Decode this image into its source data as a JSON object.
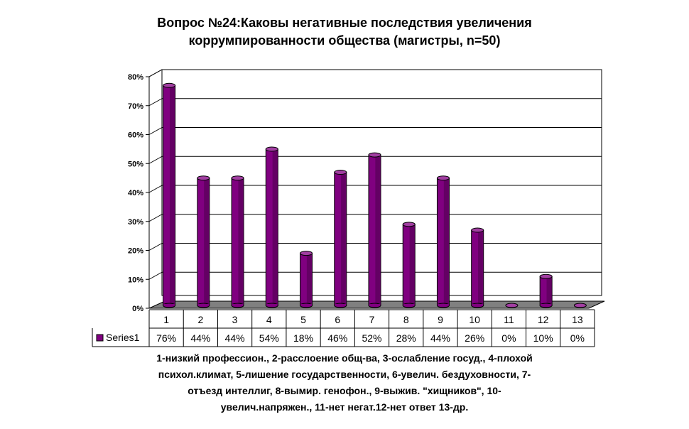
{
  "title_line1": "Вопрос №24:Каковы негативные последствия увеличения",
  "title_line2": "коррумпированности общества (магистры, n=50)",
  "caption_lines": [
    "1-низкий профессион., 2-расслоение общ-ва, 3-ослабление госуд., 4-плохой",
    "психол.климат, 5-лишение государственности, 6-увелич. бездуховности, 7-",
    "отъезд интеллиг, 8-вымир. генофон., 9-выжив. \"хищников\", 10-",
    "увелич.напряжен., 11-нет негат.12-нет ответ 13-др."
  ],
  "colors": {
    "bar_front": "#800080",
    "bar_top": "#a23ea2",
    "bar_side": "#4d004d",
    "floor": "#808080"
  },
  "chart_data": {
    "type": "bar",
    "categories": [
      "1",
      "2",
      "3",
      "4",
      "5",
      "6",
      "7",
      "8",
      "9",
      "10",
      "11",
      "12",
      "13"
    ],
    "series": [
      {
        "name": "Series1",
        "values": [
          76,
          44,
          44,
          54,
          18,
          46,
          52,
          28,
          44,
          26,
          0,
          10,
          0
        ],
        "labels": [
          "76%",
          "44%",
          "44%",
          "54%",
          "18%",
          "46%",
          "52%",
          "28%",
          "44%",
          "26%",
          "0%",
          "10%",
          "0%"
        ]
      }
    ],
    "yticks": [
      "0%",
      "10%",
      "20%",
      "30%",
      "40%",
      "50%",
      "60%",
      "70%",
      "80%"
    ],
    "ylim": [
      0,
      80
    ],
    "grid": true,
    "legend": "data-table"
  }
}
